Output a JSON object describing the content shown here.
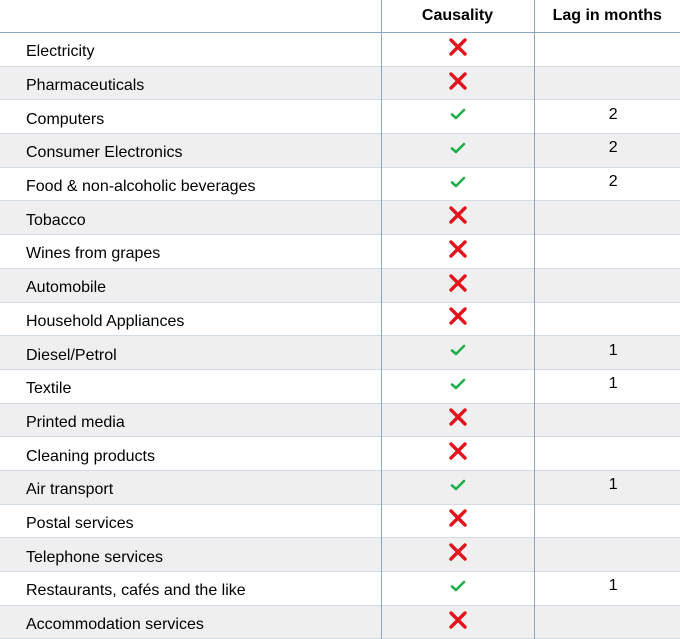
{
  "headers": {
    "category": "",
    "causality": "Causality",
    "lag": "Lag in months"
  },
  "colors": {
    "cross": "#e4121b",
    "check": "#1fae4a"
  },
  "rows": [
    {
      "label": "Electricity",
      "causality": "cross-icon",
      "lag": ""
    },
    {
      "label": "Pharmaceuticals",
      "causality": "cross-icon",
      "lag": ""
    },
    {
      "label": "Computers",
      "causality": "check-icon",
      "lag": "2"
    },
    {
      "label": "Consumer Electronics",
      "causality": "check-icon",
      "lag": "2"
    },
    {
      "label": "Food & non-alcoholic beverages",
      "causality": "check-icon",
      "lag": "2"
    },
    {
      "label": "Tobacco",
      "causality": "cross-icon",
      "lag": ""
    },
    {
      "label": "Wines from grapes",
      "causality": "cross-icon",
      "lag": ""
    },
    {
      "label": "Automobile",
      "causality": "cross-icon",
      "lag": ""
    },
    {
      "label": "Household Appliances",
      "causality": "cross-icon",
      "lag": ""
    },
    {
      "label": "Diesel/Petrol",
      "causality": "check-icon",
      "lag": "1"
    },
    {
      "label": "Textile",
      "causality": "check-icon",
      "lag": "1"
    },
    {
      "label": "Printed media",
      "causality": "cross-icon",
      "lag": ""
    },
    {
      "label": "Cleaning products",
      "causality": "cross-icon",
      "lag": ""
    },
    {
      "label": "Air transport",
      "causality": "check-icon",
      "lag": "1"
    },
    {
      "label": "Postal services",
      "causality": "cross-icon",
      "lag": ""
    },
    {
      "label": "Telephone services",
      "causality": "cross-icon",
      "lag": ""
    },
    {
      "label": "Restaurants, cafés and the like",
      "causality": "check-icon",
      "lag": "1"
    },
    {
      "label": "Accommodation services",
      "causality": "cross-icon",
      "lag": ""
    }
  ]
}
